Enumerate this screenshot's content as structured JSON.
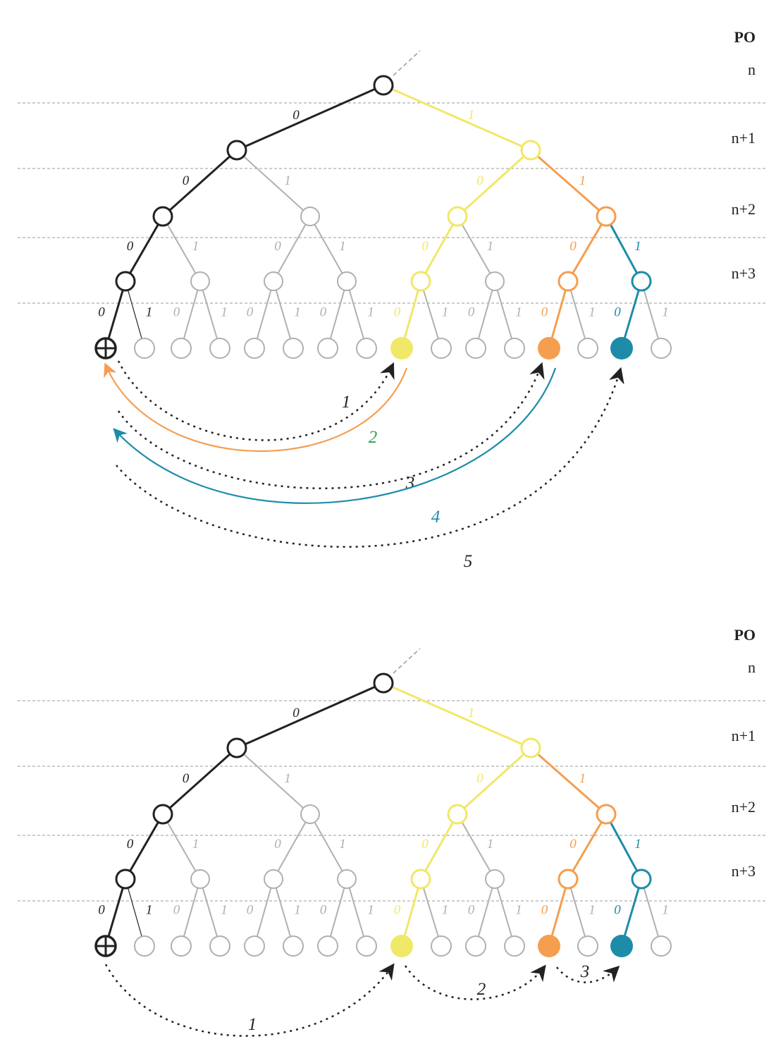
{
  "colors": {
    "black": "#222222",
    "gray": "#b0b0b0",
    "yellow": "#f0e868",
    "orange": "#f59e50",
    "teal": "#1e8ca8",
    "green": "#2ca048"
  },
  "edge_labels": {
    "left": "0",
    "right": "1"
  },
  "levels": [
    "PO",
    "n",
    "n+1",
    "n+2",
    "n+3"
  ],
  "node_colors": {
    "root": "black",
    "level1": [
      "black",
      "yellow"
    ],
    "level2": [
      "black",
      "gray",
      "yellow",
      "orange"
    ],
    "level3": [
      "black",
      "gray",
      "gray",
      "gray",
      "yellow",
      "gray",
      "orange",
      "teal"
    ],
    "leaves": [
      "plus",
      "black-thin",
      "gray",
      "gray",
      "gray",
      "gray",
      "gray",
      "gray",
      "yellow-filled",
      "gray",
      "gray",
      "gray",
      "orange-filled",
      "gray",
      "teal-filled",
      "gray"
    ]
  },
  "diagrams": [
    {
      "arrows": [
        {
          "label": "1",
          "from_leaf": 0,
          "to_leaf": 8,
          "style": "dotted",
          "color": "black",
          "label_color": "black"
        },
        {
          "label": "2",
          "from_leaf": 8,
          "to_leaf": 0,
          "style": "solid",
          "color": "orange",
          "label_color": "green"
        },
        {
          "label": "3",
          "from_leaf": 0,
          "to_leaf": 12,
          "style": "dotted",
          "color": "black",
          "label_color": "black"
        },
        {
          "label": "4",
          "from_leaf": 12,
          "to_leaf": 0,
          "style": "solid",
          "color": "teal",
          "label_color": "teal"
        },
        {
          "label": "5",
          "from_leaf": 0,
          "to_leaf": 14,
          "style": "dotted",
          "color": "black",
          "label_color": "black"
        }
      ]
    },
    {
      "arrows": [
        {
          "label": "1",
          "from_leaf": 0,
          "to_leaf": 8,
          "style": "dotted",
          "color": "black",
          "label_color": "black"
        },
        {
          "label": "2",
          "from_leaf": 8,
          "to_leaf": 12,
          "style": "dotted",
          "color": "black",
          "label_color": "black"
        },
        {
          "label": "3",
          "from_leaf": 12,
          "to_leaf": 14,
          "style": "dotted",
          "color": "black",
          "label_color": "black"
        }
      ]
    }
  ]
}
